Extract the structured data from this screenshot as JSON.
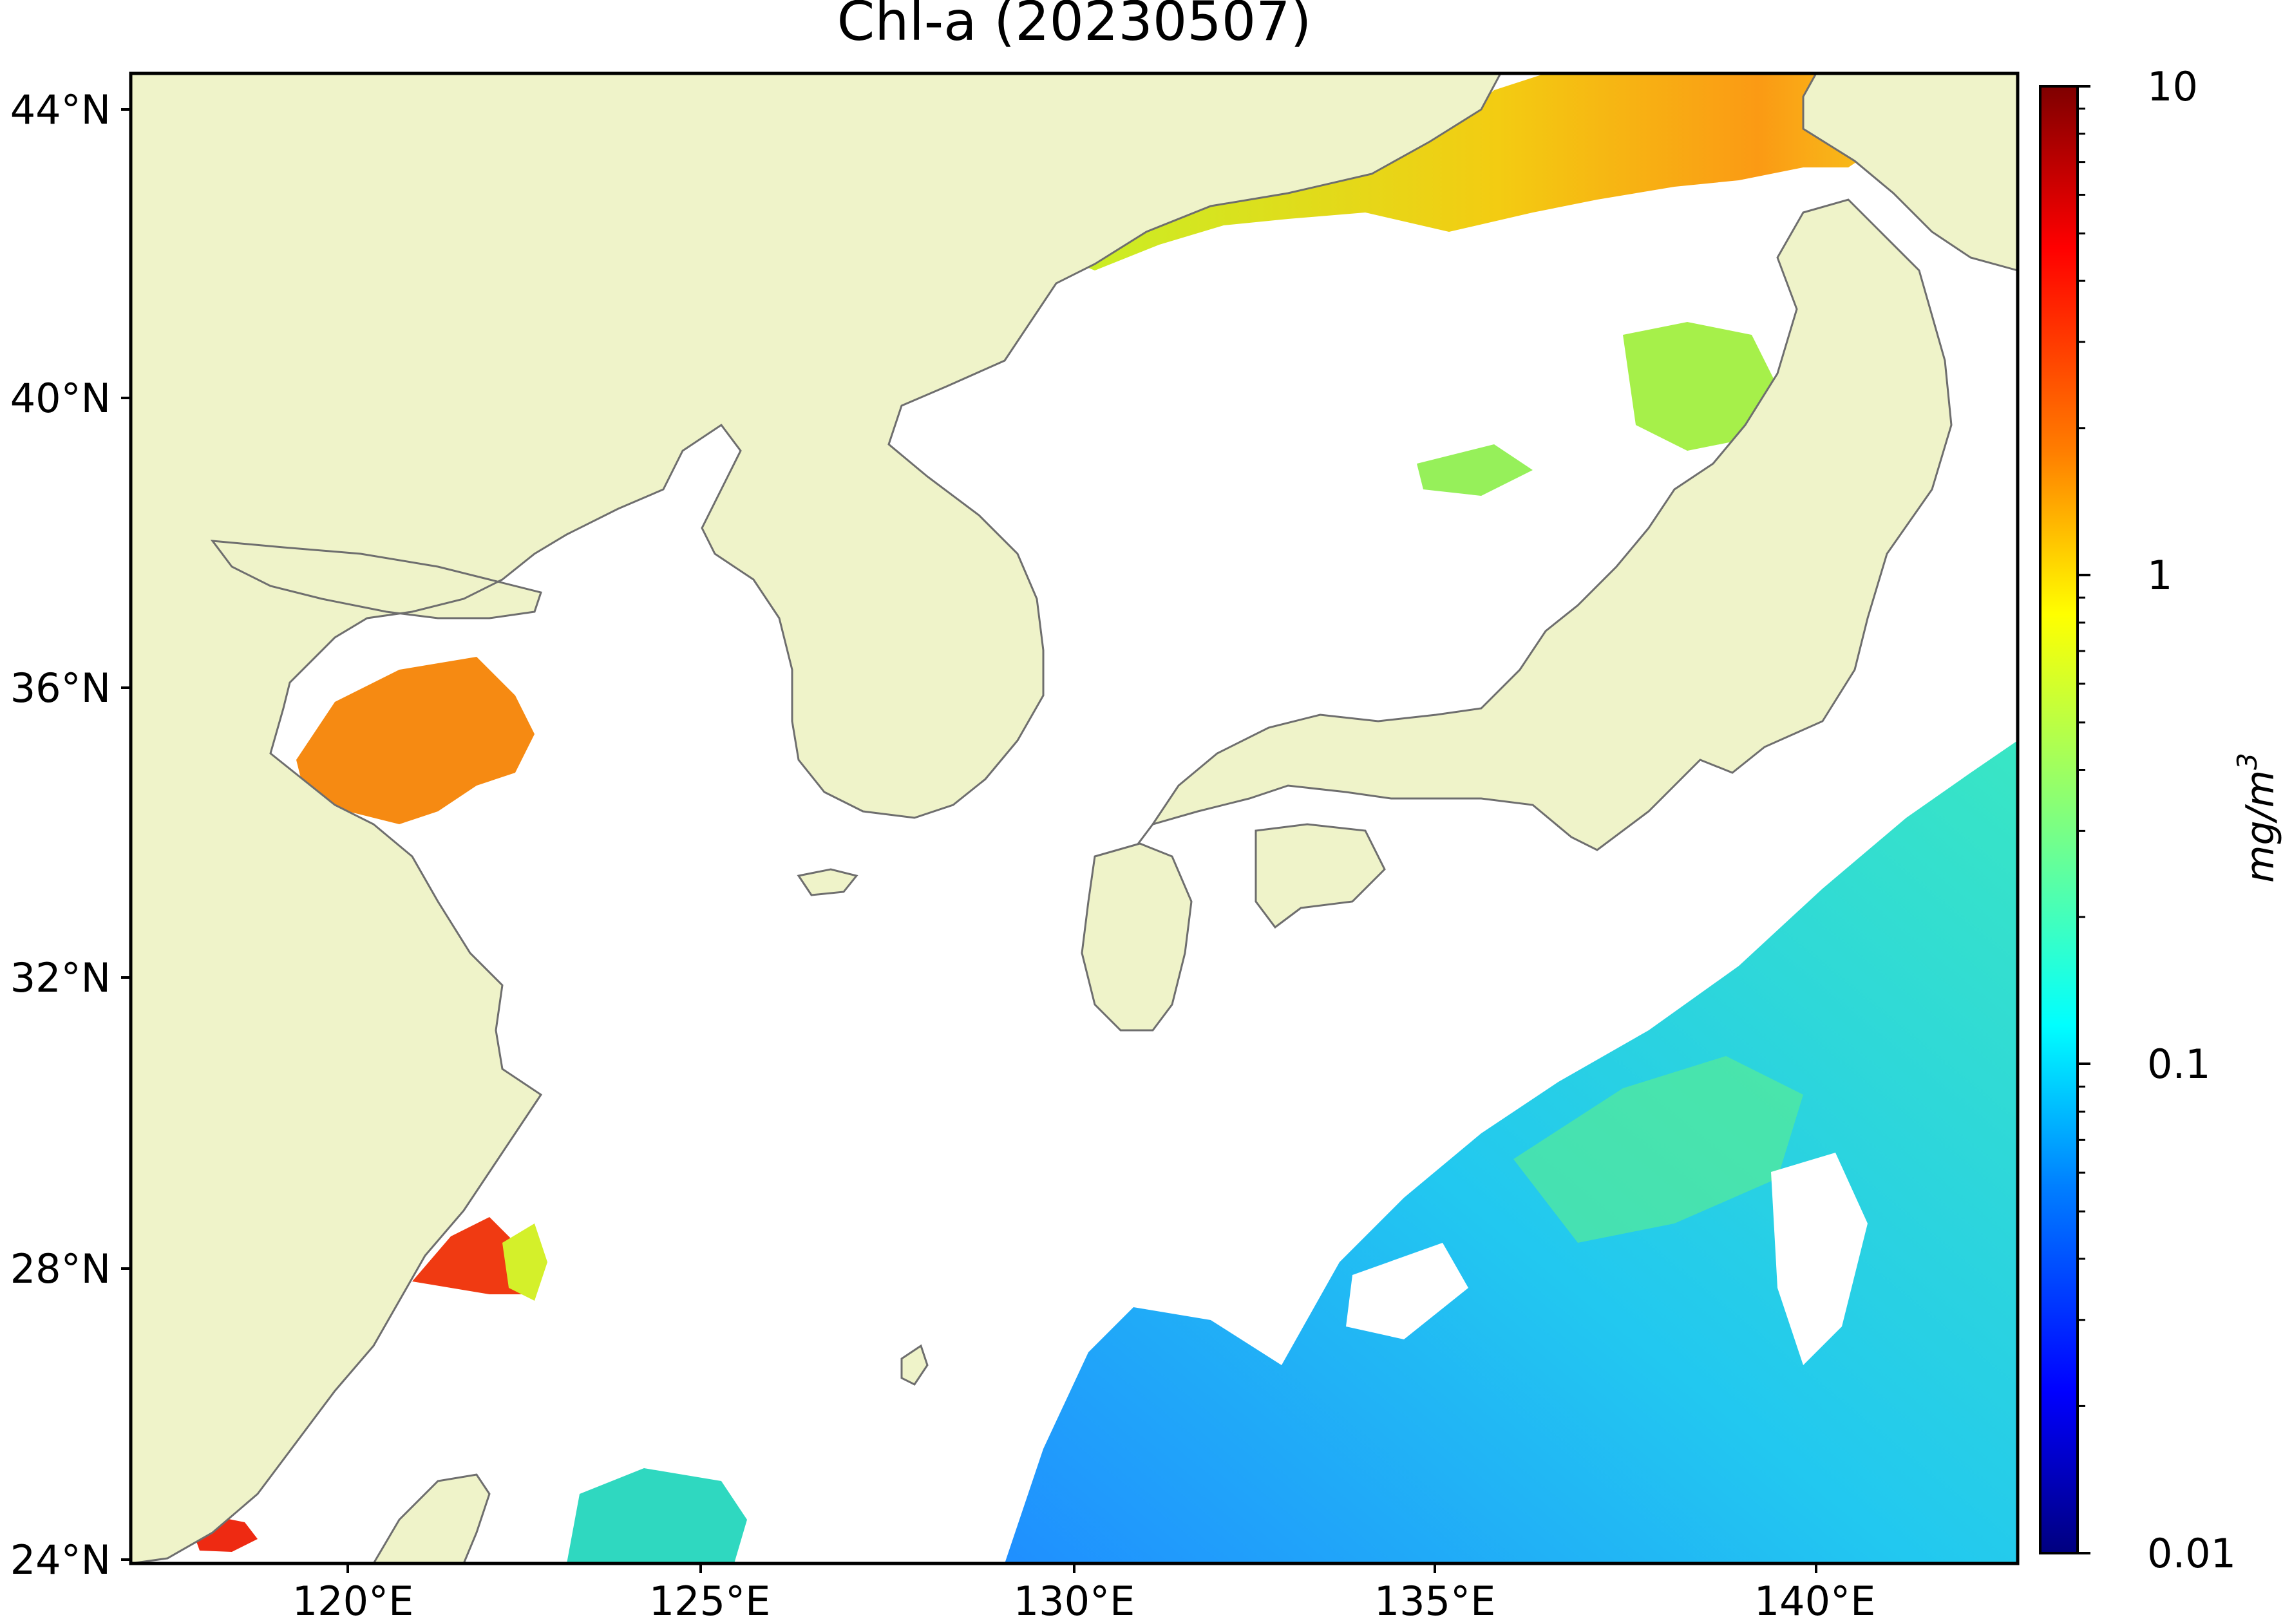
{
  "map": {
    "title": "Chl-a (20230507)",
    "longitude_ticks": [
      "120°E",
      "125°E",
      "130°E",
      "135°E",
      "140°E"
    ],
    "latitude_ticks": [
      "44°N",
      "40°N",
      "36°N",
      "32°N",
      "28°N",
      "24°N"
    ],
    "lon_range": [
      117,
      143
    ],
    "lat_range": [
      24,
      44.5
    ],
    "land_color": "#eff3c9",
    "coastline_color": "#6e6e6e",
    "cloud_mask_color": "#ffffff"
  },
  "colorbar": {
    "label": "mg/m",
    "label_superscript": "3",
    "scale": "log",
    "range": [
      0.01,
      10
    ],
    "tick_labels": [
      "10",
      "1",
      "0.1",
      "0.01"
    ],
    "colormap": "jet"
  },
  "colors": {
    "jet_stops": [
      "#00007f",
      "#0000ff",
      "#007fff",
      "#00ffff",
      "#7fff7f",
      "#ffff00",
      "#ff7f00",
      "#ff0000",
      "#7f0000"
    ]
  }
}
